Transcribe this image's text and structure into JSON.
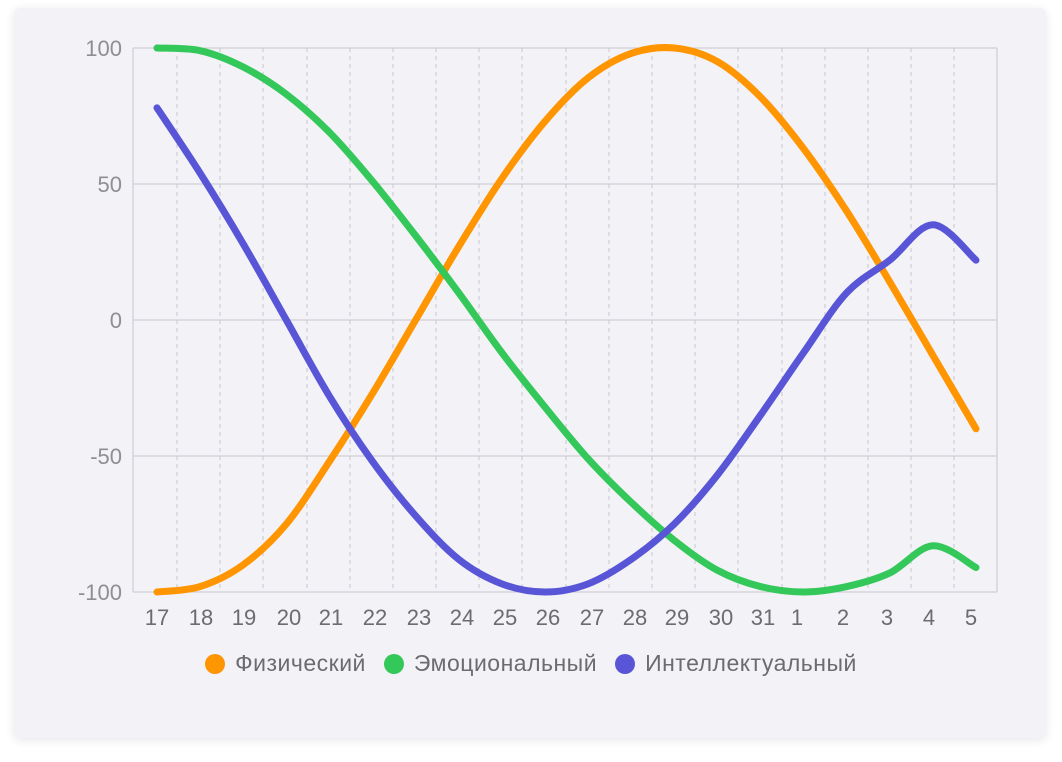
{
  "chart_data": {
    "type": "line",
    "x_labels": [
      "17",
      "18",
      "19",
      "20",
      "21",
      "22",
      "23",
      "24",
      "25",
      "26",
      "27",
      "28",
      "29",
      "30",
      "31",
      "1",
      "2",
      "3",
      "4",
      "5"
    ],
    "ylim": [
      -100,
      100
    ],
    "yticks": [
      100,
      50,
      0,
      -50,
      -100
    ],
    "grid": true,
    "legend_position": "bottom",
    "series": [
      {
        "name": "Физический",
        "color": "#ff9500",
        "values": [
          -100,
          -98,
          -90,
          -75,
          -52,
          -27,
          0,
          27,
          52,
          73,
          89,
          98,
          100,
          95,
          82,
          63,
          40,
          14,
          -13,
          -40
        ]
      },
      {
        "name": "Эмоциональный",
        "color": "#34c759",
        "values": [
          100,
          99,
          93,
          83,
          69,
          51,
          31,
          10,
          -12,
          -32,
          -51,
          -67,
          -81,
          -92,
          -98,
          -100,
          -98,
          -93,
          -83,
          -91
        ]
      },
      {
        "name": "Интеллектуальный",
        "color": "#5856d6",
        "values": [
          78,
          54,
          28,
          0,
          -28,
          -52,
          -72,
          -88,
          -97,
          -100,
          -97,
          -88,
          -75,
          -57,
          -35,
          -12,
          10,
          22,
          35,
          22
        ]
      }
    ]
  }
}
